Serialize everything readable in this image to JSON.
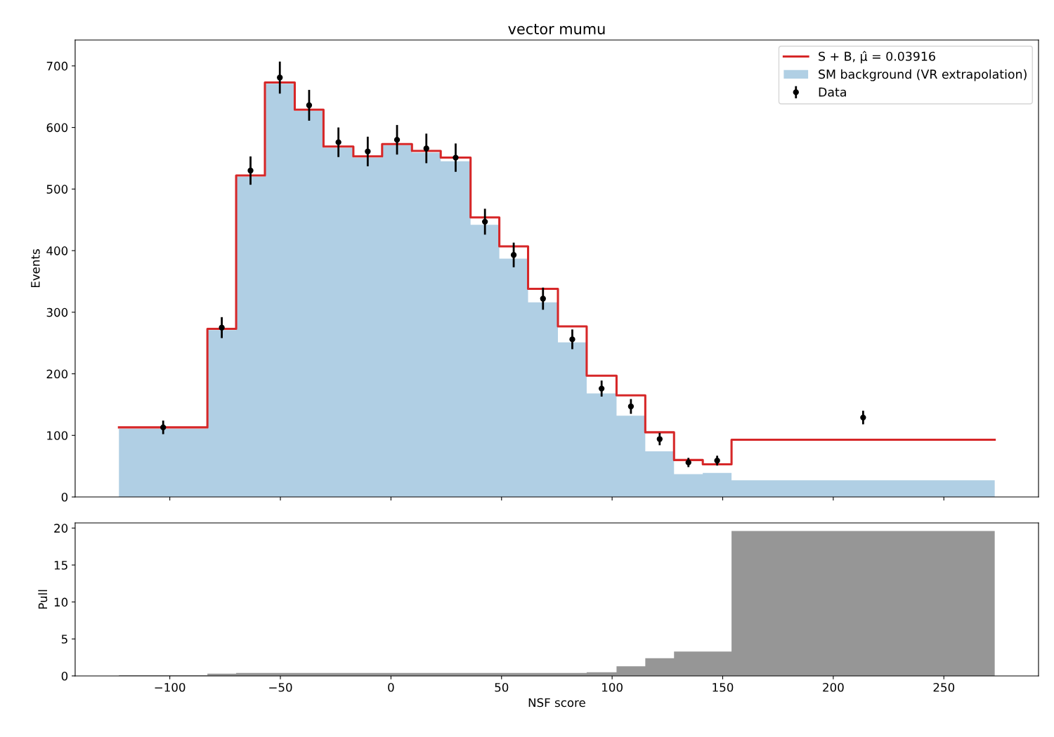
{
  "chart_data": [
    {
      "type": "histogram",
      "title": "vector mumu",
      "ylabel": "Events",
      "bins": [
        -123,
        -83,
        -70,
        -57,
        -43.5,
        -30.5,
        -17,
        -4,
        9.5,
        22.5,
        36,
        49,
        62,
        75.5,
        88.5,
        102,
        115,
        128,
        141,
        154,
        273
      ],
      "xlim": [
        -142.8,
        292.8
      ],
      "ylim": [
        0,
        742
      ],
      "yticks": [
        0,
        100,
        200,
        300,
        400,
        500,
        600,
        700
      ],
      "xticks": [
        -100,
        -50,
        0,
        50,
        100,
        150,
        200,
        250
      ],
      "tick_labels": "y",
      "grid": false,
      "legend": "top right",
      "series": [
        {
          "name": "SM background (VR extrapolation)",
          "color": "#b0cfe4",
          "values": [
            111,
            271,
            520,
            671,
            627,
            567,
            551,
            571,
            559,
            545,
            442,
            387,
            316,
            251,
            168,
            132,
            74,
            37,
            39,
            27
          ]
        },
        {
          "type": "step",
          "name": "S + B, μ̂ = 0.03916",
          "color": "#d62728",
          "x": [
            -123,
            -83,
            -70,
            -57,
            -43.5,
            -30.5,
            -17,
            -4,
            9.5,
            22.5,
            36,
            49,
            62,
            75.5,
            88.5,
            102,
            115,
            128,
            141,
            154,
            273
          ],
          "values": [
            113,
            273,
            522,
            673,
            629,
            569,
            553,
            573,
            562,
            551,
            454,
            407,
            338,
            277,
            197,
            165,
            105,
            60,
            53,
            93,
            93
          ]
        },
        {
          "type": "scatter",
          "name": "Data",
          "color": "#000000",
          "marker": "circle",
          "x": [
            -103,
            -76.5,
            -63.5,
            -50.25,
            -37,
            -23.75,
            -10.5,
            2.75,
            16,
            29.25,
            42.5,
            55.5,
            68.75,
            82,
            95.25,
            108.5,
            121.5,
            134.5,
            147.5,
            213.5
          ],
          "values": [
            113,
            275,
            530,
            681,
            636,
            576,
            561,
            580,
            566,
            551,
            447,
            393,
            322,
            256,
            176,
            147,
            94,
            56,
            59,
            129
          ],
          "errors": [
            11,
            17,
            23,
            26,
            25,
            24,
            24,
            24,
            24,
            23,
            21,
            20,
            18,
            16,
            13,
            12,
            10,
            7.5,
            8,
            11
          ]
        }
      ]
    },
    {
      "type": "histogram",
      "xlabel": "NSF score",
      "ylabel": "Pull",
      "bins": [
        -123,
        -83,
        -70,
        -57,
        -43.5,
        -30.5,
        -17,
        -4,
        9.5,
        22.5,
        36,
        49,
        62,
        75.5,
        88.5,
        102,
        115,
        128,
        141,
        154,
        273
      ],
      "xlim": [
        -142.8,
        292.8
      ],
      "ylim": [
        0,
        20.7
      ],
      "yticks": [
        0,
        5,
        10,
        15,
        20
      ],
      "xticks": [
        -100,
        -50,
        0,
        50,
        100,
        150,
        200,
        250
      ],
      "grid": false,
      "legend": false,
      "series": [
        {
          "color": "#969696",
          "values": [
            0.1,
            0.3,
            0.4,
            0.4,
            0.4,
            0.4,
            0.4,
            0.4,
            0.4,
            0.4,
            0.4,
            0.4,
            0.4,
            0.4,
            0.5,
            1.3,
            2.4,
            3.3,
            3.3,
            19.6
          ]
        }
      ]
    }
  ]
}
